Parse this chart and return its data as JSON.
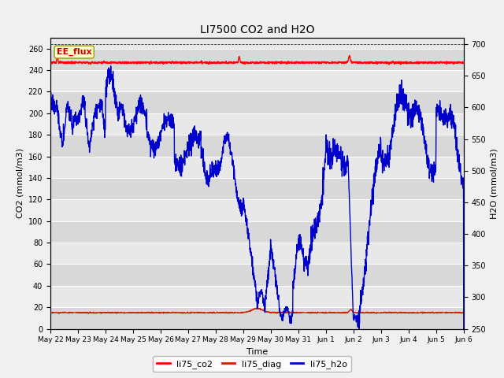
{
  "title": "LI7500 CO2 and H2O",
  "xlabel": "Time",
  "ylabel_left": "CO2 (mmol/m3)",
  "ylabel_right": "H2O (mmol/m3)",
  "ylim_left": [
    0,
    270
  ],
  "ylim_right": [
    250,
    710
  ],
  "yticks_left": [
    0,
    20,
    40,
    60,
    80,
    100,
    120,
    140,
    160,
    180,
    200,
    220,
    240,
    260
  ],
  "yticks_right": [
    250,
    300,
    350,
    400,
    450,
    500,
    550,
    600,
    650,
    700
  ],
  "xtick_labels": [
    "May 22",
    "May 23",
    "May 24",
    "May 25",
    "May 26",
    "May 27",
    "May 28",
    "May 29",
    "May 30",
    "May 31",
    "Jun 1",
    "Jun 2",
    "Jun 3",
    "Jun 4",
    "Jun 5",
    "Jun 6"
  ],
  "fig_bg_color": "#f0f0f0",
  "plot_bg_color": "#e8e8e8",
  "stripe_colors": [
    "#e0e0e0",
    "#e8e8e8"
  ],
  "grid_color": "#ffffff",
  "co2_color": "#ff0000",
  "diag_color": "#cc2200",
  "h2o_color": "#0000cc",
  "ee_flux_box_color": "#ffffcc",
  "ee_flux_text_color": "#cc0000",
  "legend_labels": [
    "li75_co2",
    "li75_diag",
    "li75_h2o"
  ],
  "legend_colors": [
    "#ff0000",
    "#cc2200",
    "#0000cc"
  ],
  "num_points": 2000,
  "co2_base": 247.0,
  "diag_base": 15.0
}
